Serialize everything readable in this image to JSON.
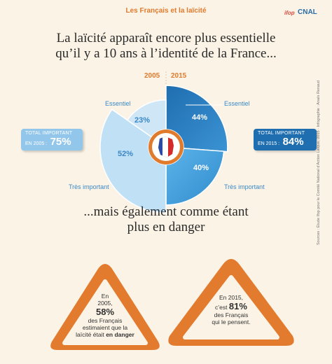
{
  "header": {
    "title": "Les Français et la laïcité",
    "logo_ifop": "ifop",
    "logo_cnal": "CNAL"
  },
  "headline_1": {
    "line1": "La laïcité apparaît encore plus essentielle",
    "line2": "qu’il y a 10 ans à l’identité de la France..."
  },
  "headline_2": {
    "line1": "...mais également comme étant",
    "line2": "plus en danger"
  },
  "chart_data": {
    "type": "pie",
    "title": "",
    "categories": [
      "Essentiel",
      "Très important"
    ],
    "series": [
      {
        "name": "2005",
        "values": [
          23,
          52
        ],
        "total_important": 75
      },
      {
        "name": "2015",
        "values": [
          44,
          40
        ],
        "total_important": 84
      }
    ],
    "unit": "%",
    "labels": {
      "year_2005": "2005",
      "year_2015": "2015",
      "essentiel_left": "Essentiel",
      "essentiel_right": "Essentiel",
      "tres_left": "Très important",
      "tres_right": "Très important",
      "v2005_essentiel": "23%",
      "v2005_tres": "52%",
      "v2015_essentiel": "44%",
      "v2015_tres": "40%"
    },
    "colors": {
      "c2005_essentiel": "#cfe6f6",
      "c2005_tres": "#bfe0f5",
      "c2015_essentiel": "#2b7fc0",
      "c2015_tres": "#4aa4df"
    }
  },
  "total_2005": {
    "label": "TOTAL IMPORTANT",
    "prefix": "EN 2005 :",
    "value": "75%"
  },
  "total_2015": {
    "label": "TOTAL IMPORTANT",
    "prefix": "EN 2015 :",
    "value": "84%"
  },
  "triangle_left": {
    "l1": "En",
    "l2": "2005,",
    "pct": "58%",
    "l3": "des Français",
    "l4": "estimaient que la",
    "l5": "laïcité était",
    "l5_bold": "en danger"
  },
  "triangle_right": {
    "l1": "En 2015,",
    "l2": "c’est",
    "pct": "81%",
    "l3": "des Français",
    "l4": "qui le pensent."
  },
  "sources": "Sources : Étude Ifop pour le Comité National d’Action Laïque, 2015 · Infographie : Anaïs Renaud"
}
